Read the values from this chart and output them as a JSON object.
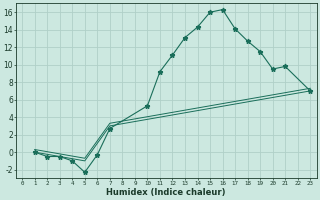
{
  "xlabel": "Humidex (Indice chaleur)",
  "bg_color": "#cce8e0",
  "grid_color": "#b0d0c8",
  "line_color": "#1a6e5a",
  "xlim": [
    -0.5,
    23.5
  ],
  "ylim": [
    -3.0,
    17.0
  ],
  "xticks": [
    0,
    1,
    2,
    3,
    4,
    5,
    6,
    7,
    8,
    9,
    10,
    11,
    12,
    13,
    14,
    15,
    16,
    17,
    18,
    19,
    20,
    21,
    22,
    23
  ],
  "yticks": [
    -2,
    0,
    2,
    4,
    6,
    8,
    10,
    12,
    14,
    16
  ],
  "line1_x": [
    1,
    2,
    3,
    4,
    5,
    6,
    7,
    10,
    11,
    12,
    13,
    14,
    15,
    16,
    17,
    18,
    19,
    20,
    21,
    23
  ],
  "line1_y": [
    0.0,
    -0.5,
    -0.5,
    -1.0,
    -2.3,
    -0.3,
    2.7,
    5.3,
    9.2,
    11.1,
    13.1,
    14.3,
    16.0,
    16.3,
    14.1,
    12.7,
    11.5,
    9.5,
    9.8,
    7.0
  ],
  "line2_x": [
    1,
    5,
    7,
    23
  ],
  "line2_y": [
    0.0,
    -1.0,
    3.0,
    7.0
  ],
  "line3_x": [
    1,
    5,
    7,
    23
  ],
  "line3_y": [
    0.3,
    -0.7,
    3.3,
    7.3
  ]
}
